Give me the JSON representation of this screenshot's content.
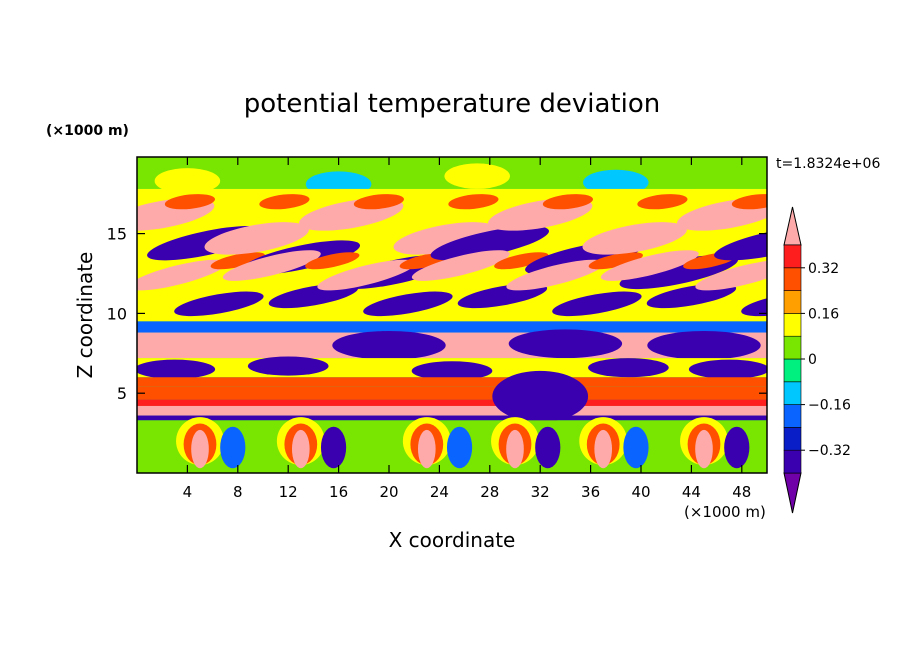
{
  "chart_data": {
    "type": "heatmap",
    "title": "potential temperature deviation",
    "time_label": "t=1.8324e+06",
    "xlabel": "X coordinate",
    "ylabel": "Z coordinate",
    "x_unit": "(×1000 m)",
    "y_unit": "(×1000 m)",
    "xlim": [
      0,
      50
    ],
    "ylim": [
      0,
      19.8
    ],
    "x_ticks": [
      4,
      8,
      12,
      16,
      20,
      24,
      28,
      32,
      36,
      40,
      44,
      48
    ],
    "y_ticks": [
      5,
      10,
      15
    ],
    "colorbar": {
      "levels": [
        -0.4,
        -0.32,
        -0.24,
        -0.16,
        -0.08,
        0,
        0.08,
        0.16,
        0.24,
        0.32,
        0.4
      ],
      "tick_labels": [
        "0.32",
        "0.16",
        "0",
        "−0.16",
        "−0.32"
      ],
      "tick_values": [
        0.32,
        0.16,
        0,
        -0.16,
        -0.32
      ],
      "colors": [
        "#7000a8",
        "#3a00b0",
        "#0a1ec8",
        "#0a64ff",
        "#00c8ff",
        "#00f080",
        "#78e600",
        "#ffff00",
        "#ffa000",
        "#ff5000",
        "#ff1e1e",
        "#ffaaaa"
      ]
    },
    "bands": [
      {
        "z": [
          0,
          3.5
        ],
        "pattern": "plumes",
        "values": [
          0.02,
          0.45,
          -0.2,
          0.05
        ]
      },
      {
        "z": [
          3.6,
          4.2
        ],
        "pattern": "layer",
        "values": [
          0.45
        ]
      },
      {
        "z": [
          4.2,
          6.0
        ],
        "pattern": "layer",
        "values": [
          0.3,
          0.24
        ]
      },
      {
        "z": [
          6.0,
          7.0
        ],
        "pattern": "mixed",
        "values": [
          -0.4,
          0.2
        ]
      },
      {
        "z": [
          7.2,
          8.8
        ],
        "pattern": "layer",
        "values": [
          0.45,
          -0.4
        ]
      },
      {
        "z": [
          9,
          18
        ],
        "pattern": "waves",
        "values": [
          -0.4,
          0.45,
          0.1
        ]
      },
      {
        "z": [
          18,
          19.8
        ],
        "pattern": "calm",
        "values": [
          0.02,
          0.1
        ]
      }
    ]
  }
}
